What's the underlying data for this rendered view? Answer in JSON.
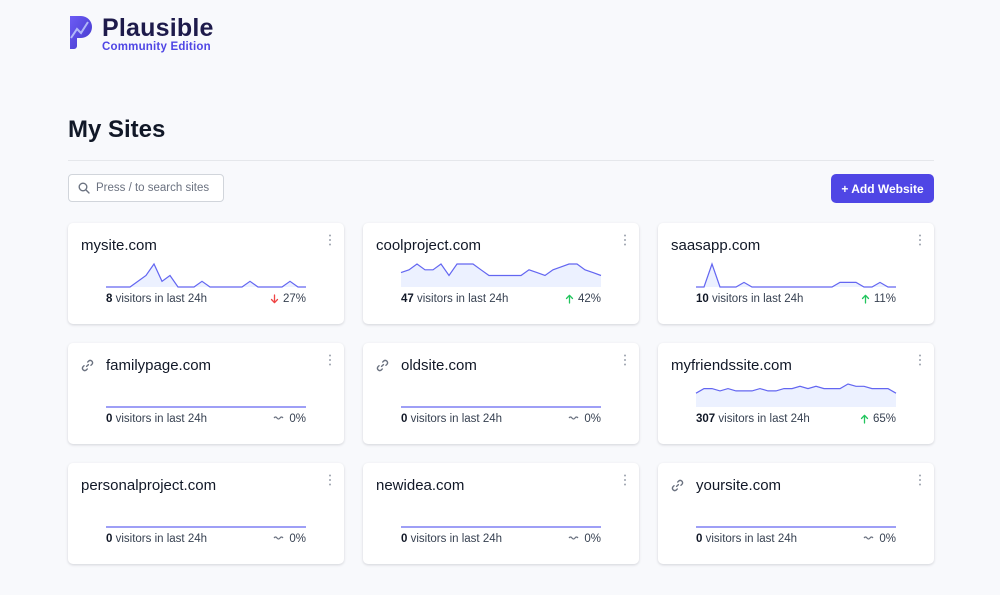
{
  "brand": {
    "name": "Plausible",
    "edition": "Community Edition"
  },
  "page": {
    "title": "My Sites"
  },
  "search": {
    "placeholder": "Press / to search sites",
    "icon": "search-icon"
  },
  "actions": {
    "add_website_label": "+ Add Website"
  },
  "colors": {
    "accent": "#4f46e5",
    "up": "#22c55e",
    "down": "#ef4444",
    "spark": "#6366f1"
  },
  "visitors_suffix": "visitors in last 24h",
  "sites": [
    {
      "domain": "mysite.com",
      "visitors": "8",
      "change": "27%",
      "trend": "down",
      "linked": false,
      "spark": [
        0,
        0,
        0,
        0,
        1,
        2,
        4,
        1,
        2,
        0,
        0,
        0,
        1,
        0,
        0,
        0,
        0,
        0,
        1,
        0,
        0,
        0,
        0,
        1,
        0,
        0
      ]
    },
    {
      "domain": "coolproject.com",
      "visitors": "47",
      "change": "42%",
      "trend": "up",
      "linked": false,
      "spark": [
        5,
        6,
        8,
        6,
        6,
        8,
        4,
        8,
        8,
        8,
        6,
        4,
        4,
        4,
        4,
        4,
        6,
        5,
        4,
        6,
        7,
        8,
        8,
        6,
        5,
        4
      ]
    },
    {
      "domain": "saasapp.com",
      "visitors": "10",
      "change": "11%",
      "trend": "up",
      "linked": false,
      "spark": [
        0,
        0,
        5,
        0,
        0,
        0,
        1,
        0,
        0,
        0,
        0,
        0,
        0,
        0,
        0,
        0,
        0,
        0,
        1,
        1,
        1,
        0,
        0,
        1,
        0,
        0
      ]
    },
    {
      "domain": "familypage.com",
      "visitors": "0",
      "change": "0%",
      "trend": "flat",
      "linked": true,
      "spark": [
        0,
        0,
        0,
        0,
        0,
        0,
        0,
        0,
        0,
        0,
        0,
        0,
        0,
        0,
        0,
        0,
        0,
        0,
        0,
        0,
        0,
        0,
        0,
        0,
        0,
        0
      ]
    },
    {
      "domain": "oldsite.com",
      "visitors": "0",
      "change": "0%",
      "trend": "flat",
      "linked": true,
      "spark": [
        0,
        0,
        0,
        0,
        0,
        0,
        0,
        0,
        0,
        0,
        0,
        0,
        0,
        0,
        0,
        0,
        0,
        0,
        0,
        0,
        0,
        0,
        0,
        0,
        0,
        0
      ]
    },
    {
      "domain": "myfriendssite.com",
      "visitors": "307",
      "change": "65%",
      "trend": "up",
      "linked": false,
      "spark": [
        6,
        8,
        8,
        7,
        8,
        7,
        7,
        7,
        8,
        7,
        7,
        8,
        8,
        9,
        8,
        9,
        8,
        8,
        8,
        10,
        9,
        9,
        8,
        8,
        8,
        6
      ]
    },
    {
      "domain": "personalproject.com",
      "visitors": "0",
      "change": "0%",
      "trend": "flat",
      "linked": false,
      "spark": [
        0,
        0,
        0,
        0,
        0,
        0,
        0,
        0,
        0,
        0,
        0,
        0,
        0,
        0,
        0,
        0,
        0,
        0,
        0,
        0,
        0,
        0,
        0,
        0,
        0,
        0
      ]
    },
    {
      "domain": "newidea.com",
      "visitors": "0",
      "change": "0%",
      "trend": "flat",
      "linked": false,
      "spark": [
        0,
        0,
        0,
        0,
        0,
        0,
        0,
        0,
        0,
        0,
        0,
        0,
        0,
        0,
        0,
        0,
        0,
        0,
        0,
        0,
        0,
        0,
        0,
        0,
        0,
        0
      ]
    },
    {
      "domain": "yoursite.com",
      "visitors": "0",
      "change": "0%",
      "trend": "flat",
      "linked": true,
      "spark": [
        0,
        0,
        0,
        0,
        0,
        0,
        0,
        0,
        0,
        0,
        0,
        0,
        0,
        0,
        0,
        0,
        0,
        0,
        0,
        0,
        0,
        0,
        0,
        0,
        0,
        0
      ]
    }
  ]
}
